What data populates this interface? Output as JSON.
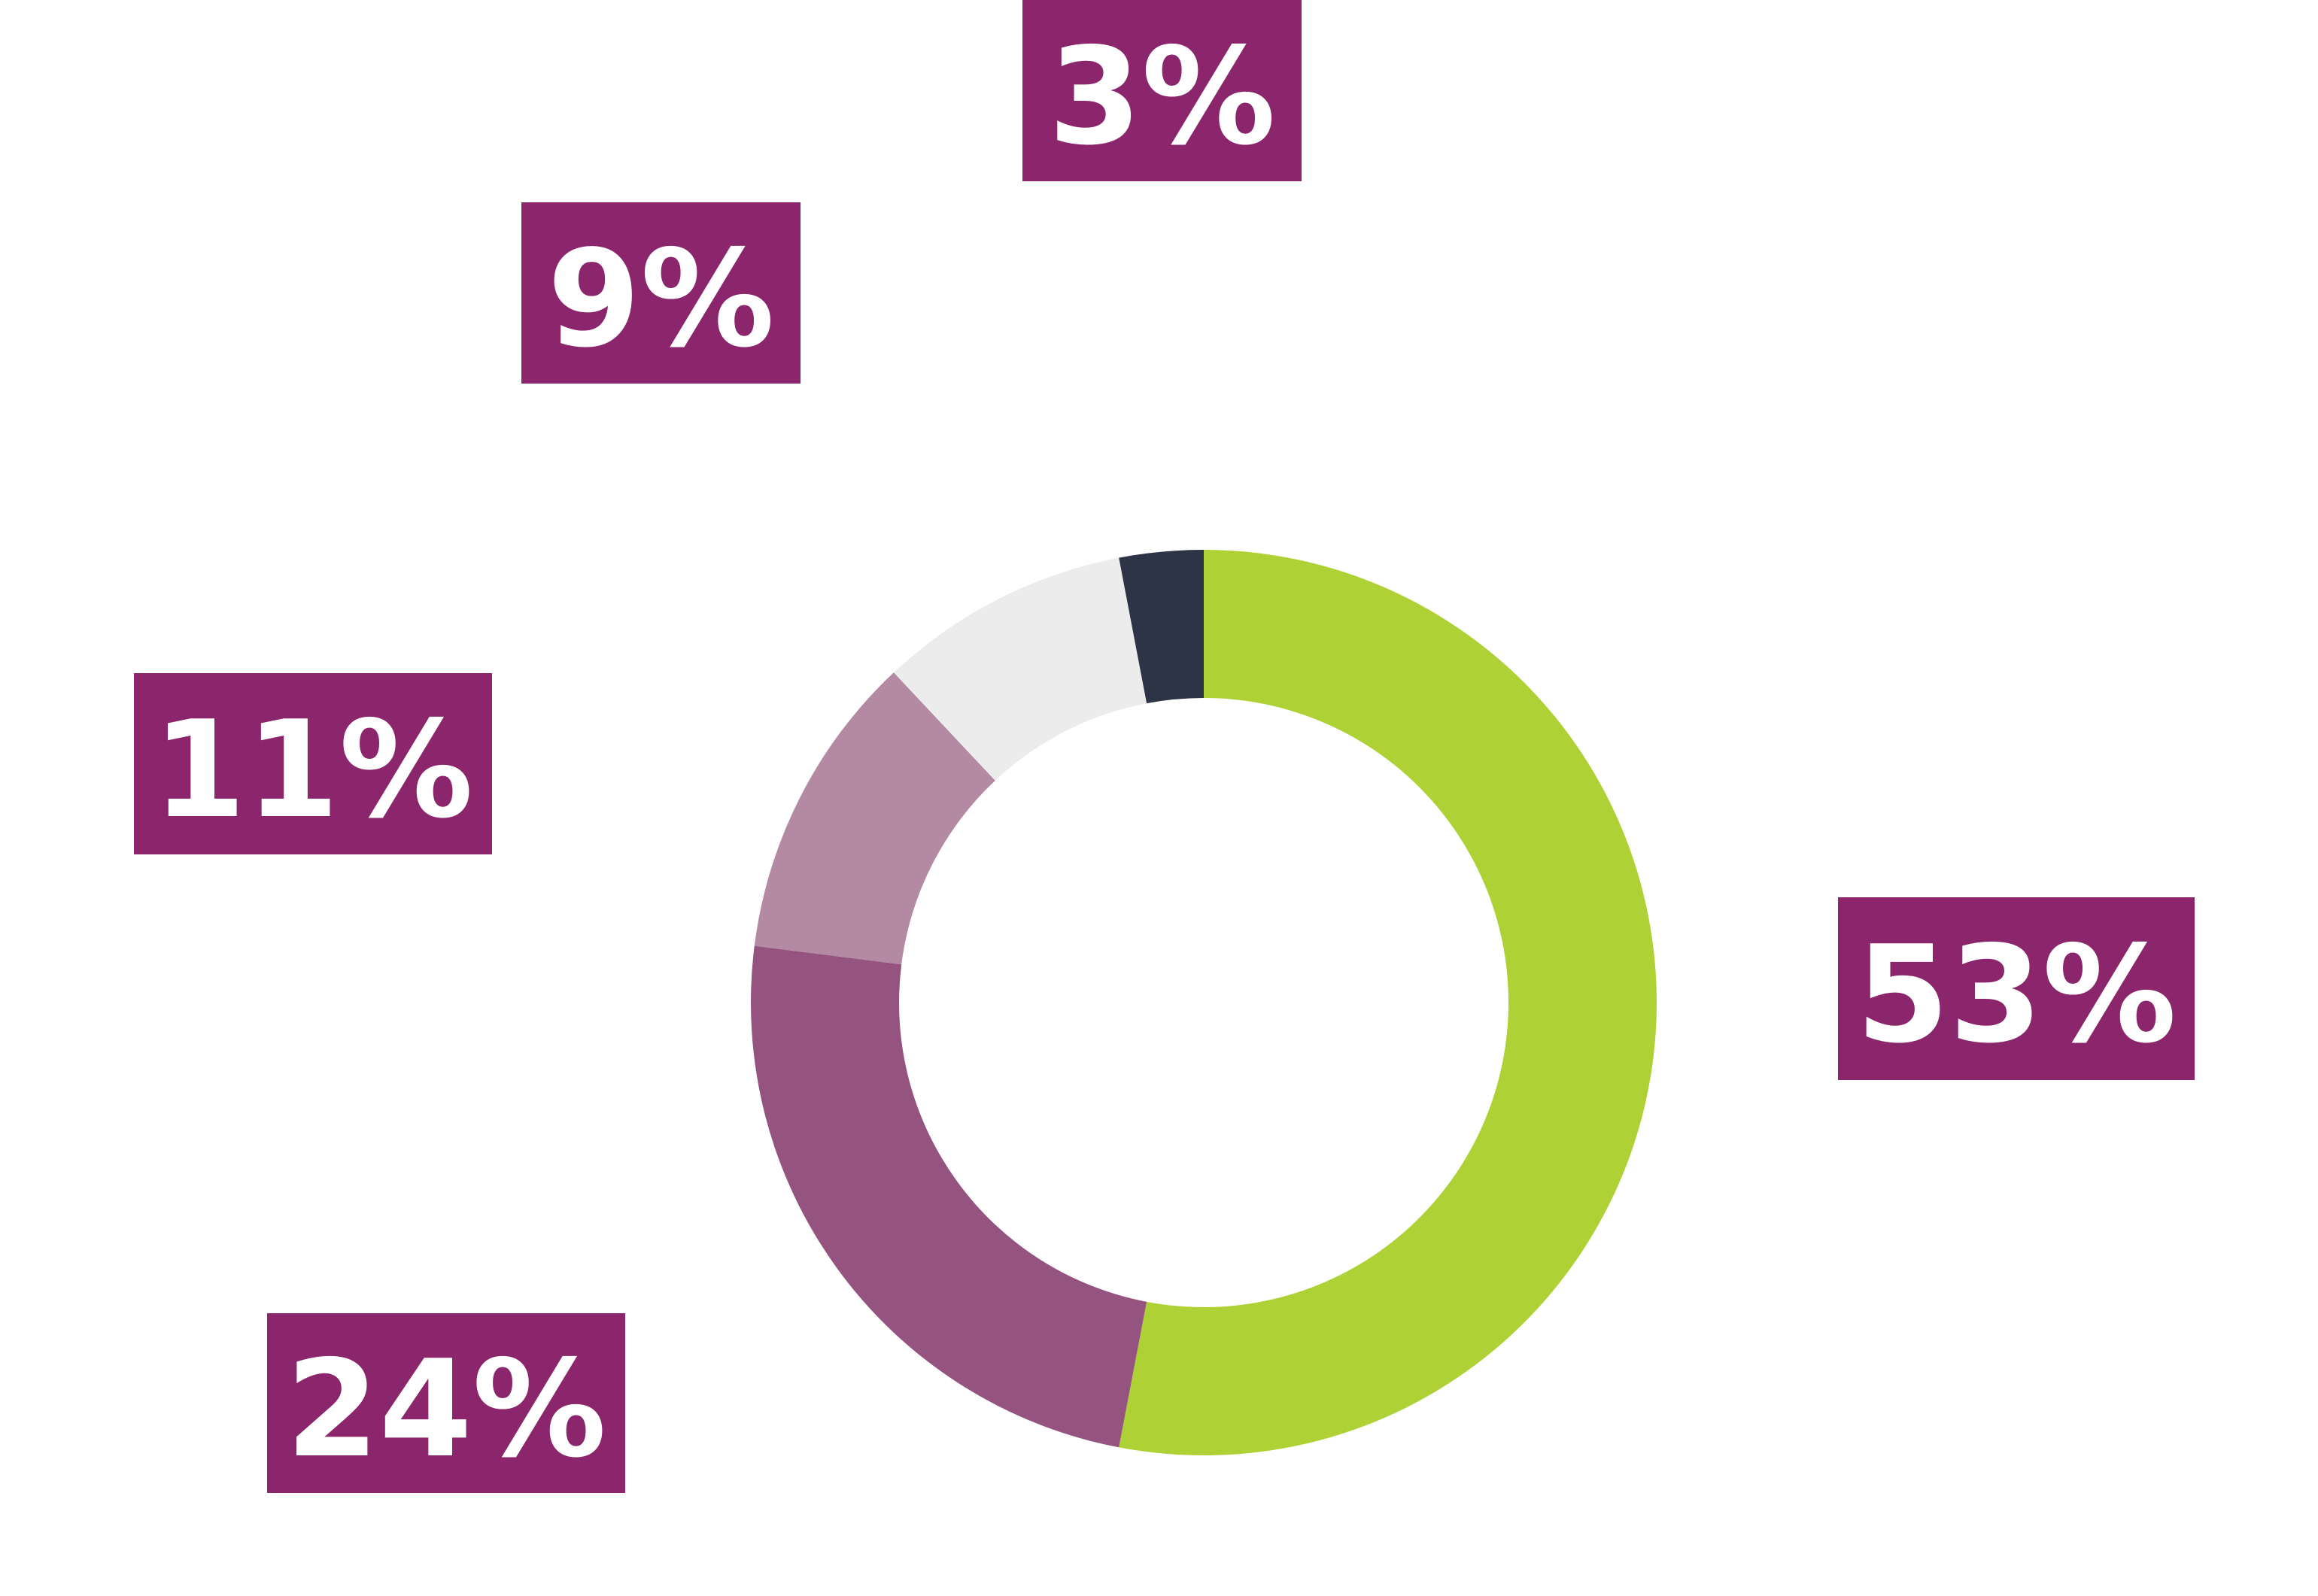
{
  "chart_data": {
    "type": "donut",
    "values": [
      53,
      24,
      11,
      9,
      3
    ],
    "value_labels": [
      "53%",
      "24%",
      "11%",
      "9%",
      "3%"
    ],
    "colors": [
      "#aed136",
      "#94547f",
      "#b389a3",
      "#ececec",
      "#2d3446"
    ],
    "label_color": "#8c266c"
  }
}
